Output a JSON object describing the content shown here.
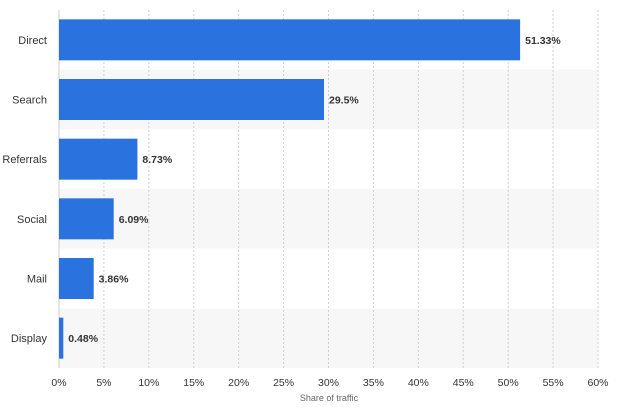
{
  "colors": {
    "bar": "#2a72de",
    "band_light": "#f7f7f7",
    "grid": "#cfcfcf",
    "text": "#333333"
  },
  "chart_data": {
    "type": "bar",
    "orientation": "horizontal",
    "categories": [
      "Direct",
      "Search",
      "Referrals",
      "Social",
      "Mail",
      "Display"
    ],
    "values": [
      51.33,
      29.5,
      8.73,
      6.09,
      3.86,
      0.48
    ],
    "value_labels": [
      "51.33%",
      "29.5%",
      "8.73%",
      "6.09%",
      "3.86%",
      "0.48%"
    ],
    "x_ticks": [
      0,
      5,
      10,
      15,
      20,
      25,
      30,
      35,
      40,
      45,
      50,
      55,
      60
    ],
    "x_tick_labels": [
      "0%",
      "5%",
      "10%",
      "15%",
      "20%",
      "25%",
      "30%",
      "35%",
      "40%",
      "45%",
      "50%",
      "55%",
      "60%"
    ],
    "xlim": [
      0,
      60
    ],
    "xlabel": "Share of traffic",
    "title": "",
    "grid": true,
    "legend": "none"
  }
}
